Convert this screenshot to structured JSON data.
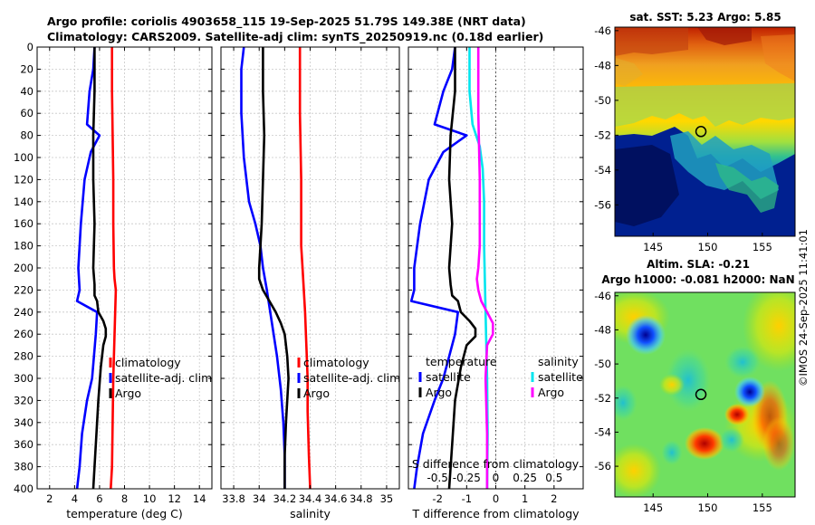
{
  "title_line1": "Argo profile: coriolis 4903658_115 19-Sep-2025 51.79S 149.38E (NRT data)",
  "title_line2": "Climatology: CARS2009. Satellite-adj clim: synTS_20250919.nc (0.18d earlier)",
  "footer": "©IMOS 24-Sep-2025 11:41:01",
  "chart_data": [
    {
      "id": "temperature",
      "type": "line",
      "xlabel": "temperature (deg C)",
      "xlim": [
        1,
        15
      ],
      "xticks": [
        2,
        4,
        6,
        8,
        10,
        12,
        14
      ],
      "ylim": [
        0,
        400
      ],
      "yticks": [
        0,
        20,
        40,
        60,
        80,
        100,
        120,
        140,
        160,
        180,
        200,
        220,
        240,
        260,
        280,
        300,
        320,
        340,
        360,
        380,
        400
      ],
      "grid": true,
      "legend": [
        "climatology",
        "satellite-adj. clim",
        "Argo"
      ],
      "series": [
        {
          "name": "climatology",
          "color": "#ff0000",
          "x": [
            7.0,
            7.0,
            7.05,
            7.1,
            7.1,
            7.15,
            7.2,
            7.3,
            7.25,
            7.2,
            7.15,
            7.1,
            7.05,
            7.0,
            6.9
          ],
          "y": [
            0,
            40,
            80,
            120,
            160,
            200,
            210,
            220,
            240,
            260,
            280,
            300,
            340,
            380,
            400
          ]
        },
        {
          "name": "satellite-adj. clim",
          "color": "#0000ff",
          "x": [
            5.6,
            5.5,
            5.2,
            5.0,
            6.0,
            5.3,
            4.8,
            4.5,
            4.3,
            4.4,
            4.2,
            5.8,
            5.7,
            5.4,
            5.0,
            4.6,
            4.4,
            4.2
          ],
          "y": [
            0,
            20,
            40,
            70,
            80,
            95,
            120,
            160,
            200,
            220,
            230,
            240,
            260,
            300,
            320,
            350,
            380,
            400
          ]
        },
        {
          "name": "Argo",
          "color": "#000000",
          "x": [
            5.6,
            5.6,
            5.5,
            5.5,
            5.6,
            5.5,
            5.6,
            5.6,
            5.8,
            5.9,
            6.3,
            6.5,
            6.5,
            6.3,
            6.1,
            5.9,
            5.8,
            5.7,
            5.6,
            5.5
          ],
          "y": [
            0,
            40,
            80,
            120,
            160,
            200,
            215,
            225,
            230,
            240,
            248,
            255,
            262,
            270,
            290,
            320,
            340,
            360,
            380,
            400
          ]
        }
      ]
    },
    {
      "id": "salinity",
      "type": "line",
      "xlabel": "salinity",
      "xlim": [
        33.7,
        35.1
      ],
      "xticks": [
        33.8,
        34,
        34.2,
        34.4,
        34.6,
        34.8,
        35
      ],
      "xticklabels": [
        "33.8",
        "34",
        "34.2",
        "34.4",
        "34.6",
        "34.8",
        "35"
      ],
      "ylim": [
        0,
        400
      ],
      "grid": true,
      "legend": [
        "climatology",
        "satellite-adj. clim",
        "Argo"
      ],
      "series": [
        {
          "name": "climatology",
          "color": "#ff0000",
          "x": [
            34.32,
            34.32,
            34.33,
            34.33,
            34.34,
            34.35,
            34.36,
            34.37,
            34.38,
            34.38,
            34.39,
            34.4
          ],
          "y": [
            0,
            60,
            120,
            180,
            200,
            220,
            240,
            270,
            300,
            330,
            370,
            400
          ]
        },
        {
          "name": "satellite-adj. clim",
          "color": "#0000ff",
          "x": [
            33.88,
            33.86,
            33.86,
            33.88,
            33.92,
            33.97,
            34.01,
            34.03,
            34.06,
            34.1,
            34.14,
            34.17,
            34.19,
            34.2,
            34.2
          ],
          "y": [
            0,
            20,
            60,
            100,
            140,
            160,
            180,
            200,
            220,
            250,
            280,
            310,
            340,
            370,
            400
          ]
        },
        {
          "name": "Argo",
          "color": "#000000",
          "x": [
            34.03,
            34.03,
            34.04,
            34.03,
            34.02,
            34.0,
            34.0,
            34.03,
            34.08,
            34.13,
            34.17,
            34.2,
            34.22,
            34.23,
            34.21,
            34.2,
            34.2
          ],
          "y": [
            0,
            40,
            80,
            120,
            160,
            200,
            210,
            220,
            230,
            240,
            250,
            260,
            280,
            300,
            340,
            370,
            400
          ]
        }
      ]
    },
    {
      "id": "difference",
      "type": "line",
      "xlabel": "T difference from climatology",
      "xlabel_top": "S difference from climatology",
      "xlim": [
        -3,
        3
      ],
      "xticks": [
        -2,
        -1,
        0,
        1,
        2
      ],
      "xticks_top": [
        -0.5,
        -0.25,
        0,
        0.25,
        0.5
      ],
      "xticklabels_top": [
        "-0.5",
        "-0.25",
        "0",
        "0.25",
        "0.5"
      ],
      "ylim": [
        0,
        400
      ],
      "grid": true,
      "legend_temperature": {
        "title": "temperature",
        "items": [
          "satellite",
          "Argo"
        ]
      },
      "legend_salinity": {
        "title": "salinity",
        "items": [
          "satellite",
          "Argo"
        ]
      },
      "series": [
        {
          "name": "T satellite",
          "color": "#0000ff",
          "x": [
            -1.4,
            -1.5,
            -1.8,
            -2.1,
            -1.0,
            -1.8,
            -2.3,
            -2.6,
            -2.8,
            -2.8,
            -2.9,
            -1.3,
            -1.4,
            -1.8,
            -2.1,
            -2.5,
            -2.7,
            -2.8
          ],
          "y": [
            0,
            20,
            40,
            70,
            80,
            95,
            120,
            160,
            200,
            220,
            230,
            240,
            260,
            300,
            320,
            350,
            380,
            400
          ]
        },
        {
          "name": "T Argo",
          "color": "#000000",
          "x": [
            -1.4,
            -1.4,
            -1.55,
            -1.6,
            -1.5,
            -1.6,
            -1.55,
            -1.5,
            -1.3,
            -1.2,
            -0.9,
            -0.7,
            -0.7,
            -1.0,
            -1.2,
            -1.4,
            -1.5,
            -1.6
          ],
          "y": [
            0,
            40,
            80,
            120,
            160,
            200,
            215,
            225,
            230,
            240,
            248,
            255,
            262,
            270,
            290,
            320,
            360,
            400
          ]
        },
        {
          "name": "S satellite",
          "color": "#00e5ee",
          "x": [
            -0.9,
            -0.9,
            -0.8,
            -0.55,
            -0.45,
            -0.4,
            -0.4,
            -0.35,
            -0.3,
            -0.28,
            -0.3
          ],
          "y": [
            0,
            40,
            70,
            90,
            110,
            140,
            180,
            240,
            300,
            350,
            400
          ]
        },
        {
          "name": "S Argo",
          "color": "#ff00ff",
          "x": [
            -0.6,
            -0.6,
            -0.55,
            -0.55,
            -0.6,
            -0.65,
            -0.6,
            -0.5,
            -0.3,
            -0.1,
            -0.1,
            -0.3,
            -0.35,
            -0.3,
            -0.3
          ],
          "y": [
            0,
            60,
            120,
            180,
            200,
            210,
            220,
            230,
            240,
            250,
            260,
            270,
            300,
            350,
            400
          ]
        }
      ]
    },
    {
      "id": "sst_map",
      "type": "heatmap",
      "title": "sat. SST: 5.23 Argo: 5.85",
      "xlim": [
        141.5,
        158
      ],
      "ylim": [
        -57.8,
        -45.8
      ],
      "xticks": [
        145,
        150,
        155
      ],
      "yticks": [
        -46,
        -48,
        -50,
        -52,
        -54,
        -56
      ],
      "marker": {
        "lon": 149.38,
        "lat": -51.79
      }
    },
    {
      "id": "sla_map",
      "type": "heatmap",
      "title_line1": "Altim. SLA: -0.21",
      "title_line2": "Argo h1000: -0.081 h2000: NaN",
      "xlim": [
        141.5,
        158
      ],
      "ylim": [
        -57.8,
        -45.8
      ],
      "xticks": [
        145,
        150,
        155
      ],
      "yticks": [
        -46,
        -48,
        -50,
        -52,
        -54,
        -56
      ],
      "marker": {
        "lon": 149.38,
        "lat": -51.79
      }
    }
  ]
}
